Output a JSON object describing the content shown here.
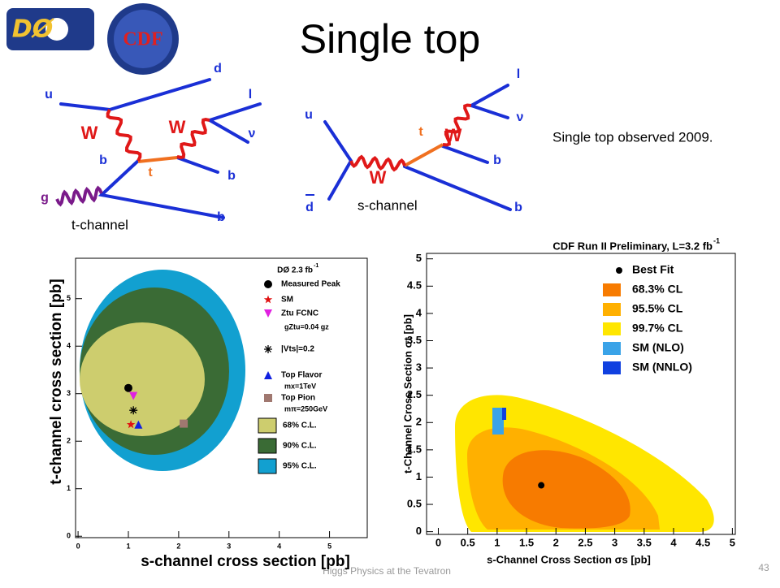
{
  "title": "Single top",
  "logos": {
    "left": "DØ",
    "right": "CDF"
  },
  "t_channel": {
    "labels": [
      "d",
      "u",
      "l",
      "W",
      "W",
      "ν",
      "b",
      "t",
      "b",
      "g",
      "b"
    ],
    "caption": "t-channel"
  },
  "s_channel": {
    "labels": [
      "l",
      "u",
      "ν",
      "t",
      "W",
      "b",
      "W",
      "d",
      "b"
    ],
    "caption": "s-channel"
  },
  "note": "Single top observed 2009.",
  "footer": "Higgs Physics at the Tevatron",
  "page_number": "43",
  "chart_data": [
    {
      "type": "contour",
      "title": "DØ 2.3 fb",
      "title_superscript": "-1",
      "xlabel": "s-channel cross section [pb]",
      "ylabel": "t-channel cross section [pb]",
      "xlim": [
        -0.05,
        5.75
      ],
      "ylim": [
        -0.03,
        5.85
      ],
      "xticks": [
        0,
        1,
        2,
        3,
        4,
        5
      ],
      "yticks": [
        0,
        1,
        2,
        3,
        4,
        5
      ],
      "points": [
        {
          "name": "Measured Peak",
          "marker": "circle",
          "color": "#000000",
          "x": 1.0,
          "y": 3.12
        },
        {
          "name": "SM",
          "marker": "star",
          "color": "#e01010",
          "x": 1.05,
          "y": 2.35
        },
        {
          "name": "Ztu FCNC",
          "note": "gZtu=0.04 gz",
          "marker": "triangle-down",
          "color": "#e020e0",
          "x": 1.1,
          "y": 2.95
        },
        {
          "name": "|Vts|=0.2",
          "marker": "asterisk",
          "color": "#000000",
          "x": 1.1,
          "y": 2.65
        },
        {
          "name": "Top Flavor",
          "note": "mx=1TeV",
          "marker": "triangle",
          "color": "#1020e0",
          "x": 1.2,
          "y": 2.35
        },
        {
          "name": "Top Pion",
          "note": "mπ=250GeV",
          "marker": "square",
          "color": "#a07870",
          "x": 2.1,
          "y": 2.37
        }
      ],
      "contours": [
        {
          "name": "68% C.L.",
          "color": "#cdcd6e"
        },
        {
          "name": "90% C.L.",
          "color": "#3a6b35"
        },
        {
          "name": "95% C.L.",
          "color": "#12a0d0"
        }
      ]
    },
    {
      "type": "contour",
      "title": "CDF Run II Preliminary, L=3.2 fb",
      "title_superscript": "-1",
      "xlabel": "s-Channel Cross Section σs [pb]",
      "ylabel": "t-Channel Cross Section σt [pb]",
      "xlim": [
        -0.2,
        5.05
      ],
      "ylim": [
        -0.05,
        5.1
      ],
      "xticks": [
        0,
        0.5,
        1,
        1.5,
        2,
        2.5,
        3,
        3.5,
        4,
        4.5,
        5
      ],
      "yticks": [
        0,
        0.5,
        1,
        1.5,
        2,
        2.5,
        3,
        3.5,
        4,
        4.5,
        5
      ],
      "points": [
        {
          "name": "Best Fit",
          "marker": "circle",
          "color": "#000000",
          "x": 1.75,
          "y": 0.85
        }
      ],
      "contours": [
        {
          "name": "68.3% CL",
          "color": "#f77b00"
        },
        {
          "name": "95.5% CL",
          "color": "#ffb000"
        },
        {
          "name": "99.7% CL",
          "color": "#ffe600"
        }
      ],
      "bands": [
        {
          "name": "SM (NLO)",
          "color": "#3aa3e8"
        },
        {
          "name": "SM (NNLO)",
          "color": "#1040e0"
        }
      ]
    }
  ]
}
